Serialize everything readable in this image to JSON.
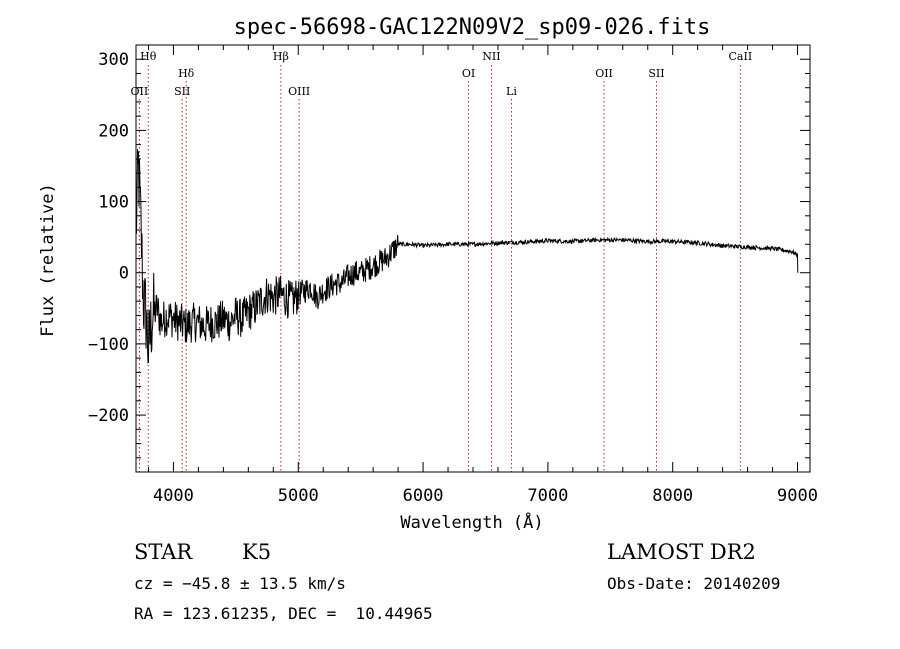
{
  "chart_data": {
    "type": "line",
    "title": "spec-56698-GAC122N09V2_sp09-026.fits",
    "xlabel": "Wavelength (Å)",
    "ylabel": "Flux (relative)",
    "xlim": [
      3700,
      9100
    ],
    "ylim": [
      -280,
      320
    ],
    "xticks": [
      4000,
      5000,
      6000,
      7000,
      8000,
      9000
    ],
    "yticks": [
      -200,
      -100,
      0,
      100,
      200,
      300
    ],
    "ytick_labels": [
      "−200",
      "−100",
      "0",
      "100",
      "200",
      "300"
    ],
    "grid": false,
    "series": [
      {
        "x": [
          3700,
          3720,
          3740,
          3760,
          3780,
          3800,
          3830,
          3870,
          3900,
          3950,
          4000,
          4050,
          4100,
          4150,
          4200,
          4250,
          4300,
          4350,
          4400,
          4450,
          4500,
          4550,
          4600,
          4650,
          4700,
          4750,
          4800,
          4850,
          4900,
          4950,
          5000,
          5050,
          5100,
          5150,
          5200,
          5250,
          5300,
          5350,
          5400,
          5450,
          5500,
          5550,
          5600,
          5650,
          5700,
          5750,
          5800,
          5900,
          6000,
          6200,
          6400,
          6600,
          6800,
          7000,
          7200,
          7400,
          7600,
          7800,
          8000,
          8200,
          8400,
          8600,
          8800,
          8950,
          9000
        ],
        "y": [
          60,
          150,
          60,
          -40,
          -60,
          -110,
          -60,
          -50,
          -70,
          -60,
          -65,
          -70,
          -75,
          -70,
          -70,
          -75,
          -70,
          -70,
          -65,
          -70,
          -60,
          -65,
          -55,
          -50,
          -40,
          -30,
          -35,
          -30,
          -35,
          -40,
          -30,
          -25,
          -20,
          -35,
          -25,
          -20,
          -15,
          -15,
          -5,
          0,
          0,
          5,
          10,
          15,
          20,
          30,
          40,
          40,
          38,
          40,
          40,
          42,
          43,
          45,
          44,
          46,
          46,
          44,
          44,
          42,
          38,
          36,
          34,
          30,
          25
        ]
      }
    ],
    "emission_lines": [
      {
        "label": "Hθ",
        "x": 3798,
        "row": 0
      },
      {
        "label": "OII",
        "x": 3727,
        "row": 2
      },
      {
        "label": "Hδ",
        "x": 4102,
        "row": 1
      },
      {
        "label": "SII",
        "x": 4070,
        "row": 2
      },
      {
        "label": "Hβ",
        "x": 4861,
        "row": 0
      },
      {
        "label": "OIII",
        "x": 5007,
        "row": 2
      },
      {
        "label": "OI",
        "x": 6364,
        "row": 1
      },
      {
        "label": "NII",
        "x": 6548,
        "row": 0
      },
      {
        "label": "Li",
        "x": 6708,
        "row": 2
      },
      {
        "label": "OII",
        "x": 7450,
        "row": 1
      },
      {
        "label": "SII",
        "x": 7870,
        "row": 1
      },
      {
        "label": "CaII",
        "x": 8542,
        "row": 0
      }
    ]
  },
  "info": {
    "object_class": "STAR",
    "subclass": "K5",
    "survey": "LAMOST DR2",
    "cz": "cz = −45.8 ± 13.5 km/s",
    "obs_date": "Obs-Date: 20140209",
    "radec": "RA = 123.61235, DEC =  10.44965"
  }
}
